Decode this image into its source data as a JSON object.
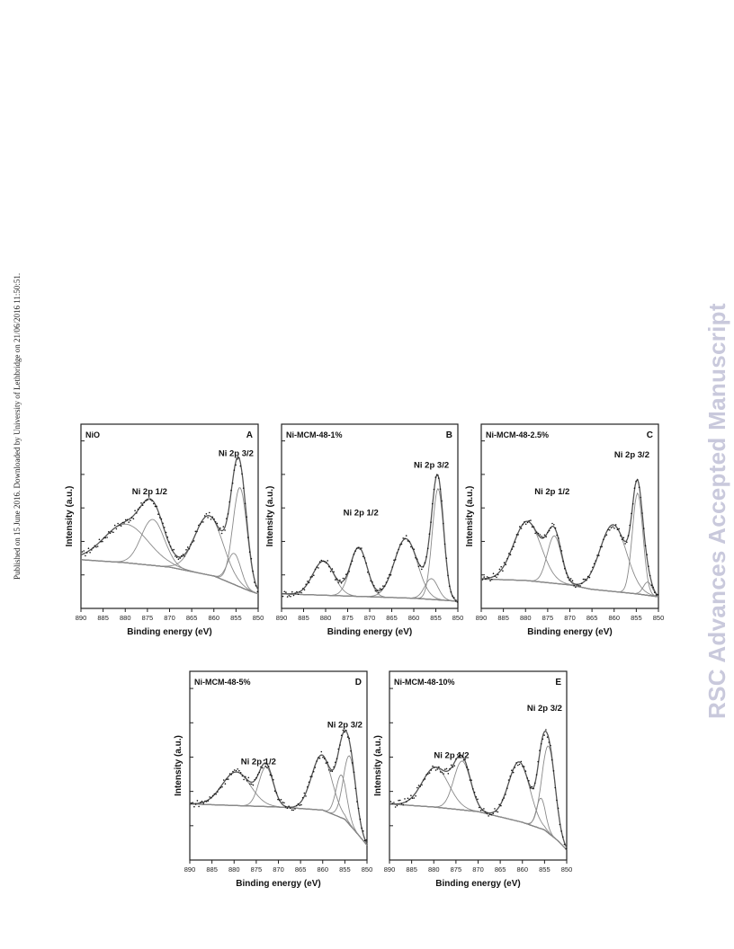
{
  "side_note": "Published on 15 June 2016. Downloaded by University of Lethbridge on 21/06/2016 11:50:51.",
  "watermark": "RSC Advances Accepted Manuscript",
  "colors": {
    "data_points": "#111111",
    "envelope": "#555555",
    "components": "#8a8a8a",
    "background": "#111111"
  },
  "chart_data": [
    {
      "type": "scatter",
      "panel_letter": "A",
      "sample": "NiO",
      "xlabel": "Binding energy (eV)",
      "ylabel": "Intensity (a.u.)",
      "xlim": [
        890,
        850
      ],
      "xticks": [
        890,
        885,
        880,
        875,
        870,
        865,
        860,
        855,
        850
      ],
      "annotations": [
        {
          "text": "Ni 2p 1/2",
          "x": 874.5,
          "y": 0.72
        },
        {
          "text": "Ni 2p 3/2",
          "x": 855,
          "y": 0.98
        }
      ],
      "background": [
        [
          890,
          0.28
        ],
        [
          880,
          0.26
        ],
        [
          870,
          0.23
        ],
        [
          860,
          0.17
        ],
        [
          852,
          0.07
        ],
        [
          850,
          0.05
        ]
      ],
      "components": [
        {
          "center": 879.8,
          "height": 0.26,
          "width": 5
        },
        {
          "center": 873.8,
          "height": 0.31,
          "width": 2.6
        },
        {
          "center": 861.1,
          "height": 0.4,
          "width": 3.2
        },
        {
          "center": 855.4,
          "height": 0.21,
          "width": 1.5
        },
        {
          "center": 854.1,
          "height": 0.67,
          "width": 1.6
        }
      ]
    },
    {
      "type": "scatter",
      "panel_letter": "B",
      "sample": "Ni-MCM-48-1%",
      "xlabel": "Binding energy (eV)",
      "ylabel": "Intensity (a.u.)",
      "xlim": [
        890,
        850
      ],
      "xticks": [
        890,
        885,
        880,
        875,
        870,
        865,
        860,
        855,
        850
      ],
      "annotations": [
        {
          "text": "Ni 2p 1/2",
          "x": 872,
          "y": 0.58
        },
        {
          "text": "Ni 2p 3/2",
          "x": 856,
          "y": 0.9
        }
      ],
      "background": [
        [
          890,
          0.05
        ],
        [
          880,
          0.04
        ],
        [
          870,
          0.03
        ],
        [
          860,
          0.02
        ],
        [
          850,
          0.0
        ]
      ],
      "components": [
        {
          "center": 880.5,
          "height": 0.23,
          "width": 2.4
        },
        {
          "center": 872.5,
          "height": 0.33,
          "width": 1.9
        },
        {
          "center": 861.8,
          "height": 0.4,
          "width": 2.6
        },
        {
          "center": 856.0,
          "height": 0.14,
          "width": 1.5
        },
        {
          "center": 854.5,
          "height": 0.75,
          "width": 1.3
        }
      ]
    },
    {
      "type": "scatter",
      "panel_letter": "C",
      "sample": "Ni-MCM-48-2.5%",
      "xlabel": "Binding energy (eV)",
      "ylabel": "Intensity (a.u.)",
      "xlim": [
        890,
        850
      ],
      "xticks": [
        890,
        885,
        880,
        875,
        870,
        865,
        860,
        855,
        850
      ],
      "annotations": [
        {
          "text": "Ni 2p 1/2",
          "x": 874,
          "y": 0.72
        },
        {
          "text": "Ni 2p 3/2",
          "x": 856,
          "y": 0.97
        }
      ],
      "background": [
        [
          890,
          0.15
        ],
        [
          880,
          0.14
        ],
        [
          870,
          0.11
        ],
        [
          865,
          0.08
        ],
        [
          855,
          0.05
        ],
        [
          850,
          0.03
        ]
      ],
      "components": [
        {
          "center": 879.6,
          "height": 0.4,
          "width": 3.1
        },
        {
          "center": 873.5,
          "height": 0.32,
          "width": 1.6
        },
        {
          "center": 860.2,
          "height": 0.45,
          "width": 3.0
        },
        {
          "center": 854.7,
          "height": 0.68,
          "width": 1.2
        },
        {
          "center": 852.4,
          "height": 0.09,
          "width": 1.0
        }
      ]
    },
    {
      "type": "scatter",
      "panel_letter": "D",
      "sample": "Ni-MCM-48-5%",
      "xlabel": "Binding energy (eV)",
      "ylabel": "Intensity (a.u.)",
      "xlim": [
        890,
        850
      ],
      "xticks": [
        890,
        885,
        880,
        875,
        870,
        865,
        860,
        855,
        850
      ],
      "annotations": [
        {
          "text": "Ni 2p 1/2",
          "x": 874.5,
          "y": 0.58
        },
        {
          "text": "Ni 2p 3/2",
          "x": 855,
          "y": 0.82
        }
      ],
      "background": [
        [
          890,
          0.32
        ],
        [
          880,
          0.31
        ],
        [
          870,
          0.3
        ],
        [
          860,
          0.28
        ],
        [
          855,
          0.22
        ],
        [
          852,
          0.12
        ],
        [
          850,
          0.05
        ]
      ],
      "components": [
        {
          "center": 879.5,
          "height": 0.22,
          "width": 3.2
        },
        {
          "center": 872.8,
          "height": 0.26,
          "width": 1.6
        },
        {
          "center": 860.2,
          "height": 0.36,
          "width": 2.3
        },
        {
          "center": 855.8,
          "height": 0.28,
          "width": 1.2
        },
        {
          "center": 853.9,
          "height": 0.45,
          "width": 1.4
        }
      ]
    },
    {
      "type": "scatter",
      "panel_letter": "E",
      "sample": "Ni-MCM-48-10%",
      "xlabel": "Binding energy (eV)",
      "ylabel": "Intensity (a.u.)",
      "xlim": [
        890,
        850
      ],
      "xticks": [
        890,
        885,
        880,
        875,
        870,
        865,
        860,
        855,
        850
      ],
      "annotations": [
        {
          "text": "Ni 2p 1/2",
          "x": 876,
          "y": 0.62
        },
        {
          "text": "Ni 2p 3/2",
          "x": 855,
          "y": 0.93
        }
      ],
      "background": [
        [
          890,
          0.32
        ],
        [
          880,
          0.3
        ],
        [
          870,
          0.27
        ],
        [
          860,
          0.2
        ],
        [
          855,
          0.15
        ],
        [
          852,
          0.08
        ],
        [
          850,
          0.02
        ]
      ],
      "components": [
        {
          "center": 879.6,
          "height": 0.26,
          "width": 3.0
        },
        {
          "center": 873.6,
          "height": 0.32,
          "width": 1.9
        },
        {
          "center": 860.7,
          "height": 0.39,
          "width": 2.4
        },
        {
          "center": 855.8,
          "height": 0.2,
          "width": 1.0
        },
        {
          "center": 854.1,
          "height": 0.57,
          "width": 1.5
        }
      ]
    }
  ]
}
